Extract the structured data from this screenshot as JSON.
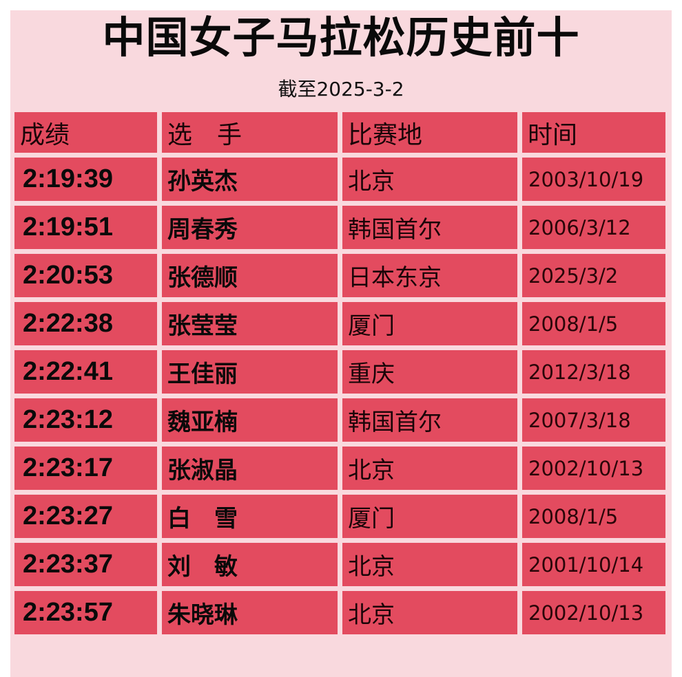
{
  "title": "中国女子马拉松历史前十",
  "subtitle": "截至2025-3-2",
  "colors": {
    "background": "#f9d9de",
    "cell": "#e34b5f"
  },
  "table": {
    "headers": [
      "成绩",
      "选　手",
      "比赛地",
      "时间"
    ],
    "rows": [
      [
        "2:19:39",
        "孙英杰",
        "北京",
        "2003/10/19"
      ],
      [
        "2:19:51",
        "周春秀",
        "韩国首尔",
        "2006/3/12"
      ],
      [
        "2:20:53",
        "张德顺",
        "日本东京",
        "2025/3/2"
      ],
      [
        "2:22:38",
        "张莹莹",
        "厦门",
        "2008/1/5"
      ],
      [
        "2:22:41",
        "王佳丽",
        "重庆",
        "2012/3/18"
      ],
      [
        "2:23:12",
        "魏亚楠",
        "韩国首尔",
        "2007/3/18"
      ],
      [
        "2:23:17",
        "张淑晶",
        "北京",
        "2002/10/13"
      ],
      [
        "2:23:27",
        "白　雪",
        "厦门",
        "2008/1/5"
      ],
      [
        "2:23:37",
        "刘　敏",
        "北京",
        "2001/10/14"
      ],
      [
        "2:23:57",
        "朱晓琳",
        "北京",
        "2002/10/13"
      ]
    ]
  }
}
